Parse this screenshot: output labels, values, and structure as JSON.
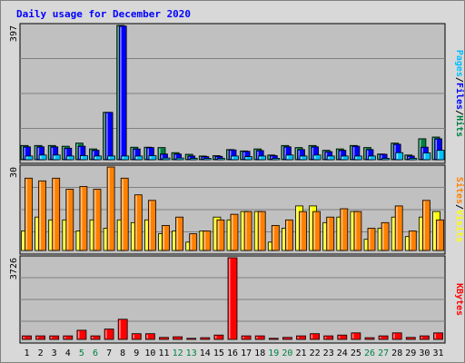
{
  "chart_data": {
    "type": "bar",
    "title": "Daily usage for December 2020",
    "categories": [
      "1",
      "2",
      "3",
      "4",
      "5",
      "6",
      "7",
      "8",
      "9",
      "10",
      "11",
      "12",
      "13",
      "14",
      "15",
      "16",
      "17",
      "18",
      "19",
      "20",
      "21",
      "22",
      "23",
      "24",
      "25",
      "26",
      "27",
      "28",
      "29",
      "30",
      "31"
    ],
    "weekend_days": [
      "5",
      "6",
      "12",
      "13",
      "19",
      "20",
      "26",
      "27"
    ],
    "colors": {
      "hits": "#008040",
      "files": "#0000ff",
      "pages": "#00c0ff",
      "visits": "#ffff00",
      "sites": "#ff8000",
      "kbytes": "#ff0000",
      "title": "#0000ff",
      "weekend": "#008040",
      "plot_bg": "#c0c0c0",
      "frame_bg": "#d8d8d8"
    },
    "panels": [
      {
        "id": "hits-files-pages",
        "ymax_label": "397",
        "ymax": 397,
        "legend": [
          "Pages",
          "/",
          "Files",
          "/",
          "Hits"
        ],
        "series": [
          {
            "name": "Hits",
            "values": [
              42,
              42,
              42,
              40,
              49,
              32,
              140,
              397,
              37,
              37,
              36,
              21,
              16,
              11,
              12,
              30,
              26,
              32,
              14,
              42,
              36,
              42,
              28,
              32,
              42,
              36,
              17,
              49,
              14,
              62,
              67
            ]
          },
          {
            "name": "Files",
            "values": [
              38,
              38,
              38,
              34,
              40,
              28,
              140,
              395,
              32,
              36,
              17,
              17,
              11,
              9,
              10,
              29,
              25,
              27,
              12,
              38,
              30,
              38,
              24,
              28,
              40,
              30,
              16,
              46,
              11,
              37,
              62
            ]
          },
          {
            "name": "Pages",
            "values": [
              11,
              14,
              14,
              11,
              12,
              11,
              11,
              11,
              11,
              12,
              5,
              5,
              4,
              4,
              4,
              11,
              9,
              11,
              4,
              14,
              11,
              14,
              11,
              11,
              11,
              11,
              4,
              21,
              4,
              20,
              28
            ]
          }
        ]
      },
      {
        "id": "visits-sites",
        "ymax_label": "30",
        "ymax": 30,
        "legend": [
          "Sites",
          "/",
          "Visits"
        ],
        "series": [
          {
            "name": "Visits",
            "values": [
              7,
              12,
              11,
              11,
              7,
              11,
              8,
              11,
              10,
              11,
              6,
              7,
              3,
              7,
              12,
              11,
              14,
              14,
              3,
              8,
              16,
              16,
              10,
              12,
              14,
              4,
              8,
              12,
              5,
              12,
              14
            ]
          },
          {
            "name": "Sites",
            "values": [
              26,
              25,
              26,
              22,
              23,
              22,
              30,
              26,
              20,
              18,
              9,
              12,
              6,
              7,
              11,
              13,
              14,
              14,
              9,
              11,
              14,
              14,
              12,
              15,
              14,
              8,
              10,
              16,
              7,
              18,
              11
            ]
          }
        ]
      },
      {
        "id": "kbytes",
        "ymax_label": "3726",
        "ymax": 3726,
        "legend": [
          "KBytes"
        ],
        "series": [
          {
            "name": "KBytes",
            "values": [
              160,
              160,
              160,
              160,
              420,
              160,
              470,
              920,
              260,
              260,
              90,
              120,
              50,
              80,
              200,
              3726,
              160,
              160,
              50,
              90,
              160,
              260,
              160,
              200,
              300,
              80,
              160,
              300,
              90,
              160,
              300
            ]
          }
        ]
      }
    ]
  }
}
